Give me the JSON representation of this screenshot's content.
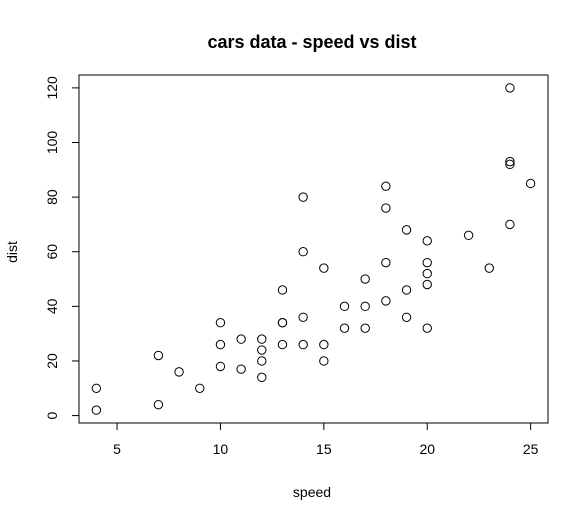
{
  "chart_data": {
    "type": "scatter",
    "title": "cars data - speed vs dist",
    "xlabel": "speed",
    "ylabel": "dist",
    "xlim": [
      3.16,
      25.84
    ],
    "ylim": [
      -2.72,
      124.72
    ],
    "xticks": [
      5,
      10,
      15,
      20,
      25
    ],
    "yticks": [
      0,
      20,
      40,
      60,
      80,
      100,
      120
    ],
    "xtick_labels": [
      "5",
      "10",
      "15",
      "20",
      "25"
    ],
    "ytick_labels": [
      "0",
      "20",
      "40",
      "60",
      "80",
      "100",
      "120"
    ],
    "grid": false,
    "legend": "none",
    "point_style": "open circle",
    "series": [
      {
        "x": [
          4,
          4,
          7,
          7,
          8,
          9,
          10,
          10,
          10,
          11,
          11,
          12,
          12,
          12,
          12,
          13,
          13,
          13,
          13,
          14,
          14,
          14,
          14,
          15,
          15,
          15,
          16,
          16,
          17,
          17,
          17,
          18,
          18,
          18,
          18,
          19,
          19,
          19,
          20,
          20,
          20,
          20,
          20,
          22,
          23,
          24,
          24,
          24,
          24,
          25
        ],
        "y": [
          2,
          10,
          4,
          22,
          16,
          10,
          18,
          26,
          34,
          17,
          28,
          14,
          20,
          24,
          28,
          26,
          34,
          34,
          46,
          26,
          36,
          60,
          80,
          20,
          26,
          54,
          32,
          40,
          32,
          40,
          50,
          42,
          56,
          76,
          84,
          36,
          46,
          68,
          32,
          48,
          52,
          56,
          64,
          66,
          54,
          70,
          92,
          93,
          120,
          85
        ]
      }
    ]
  }
}
